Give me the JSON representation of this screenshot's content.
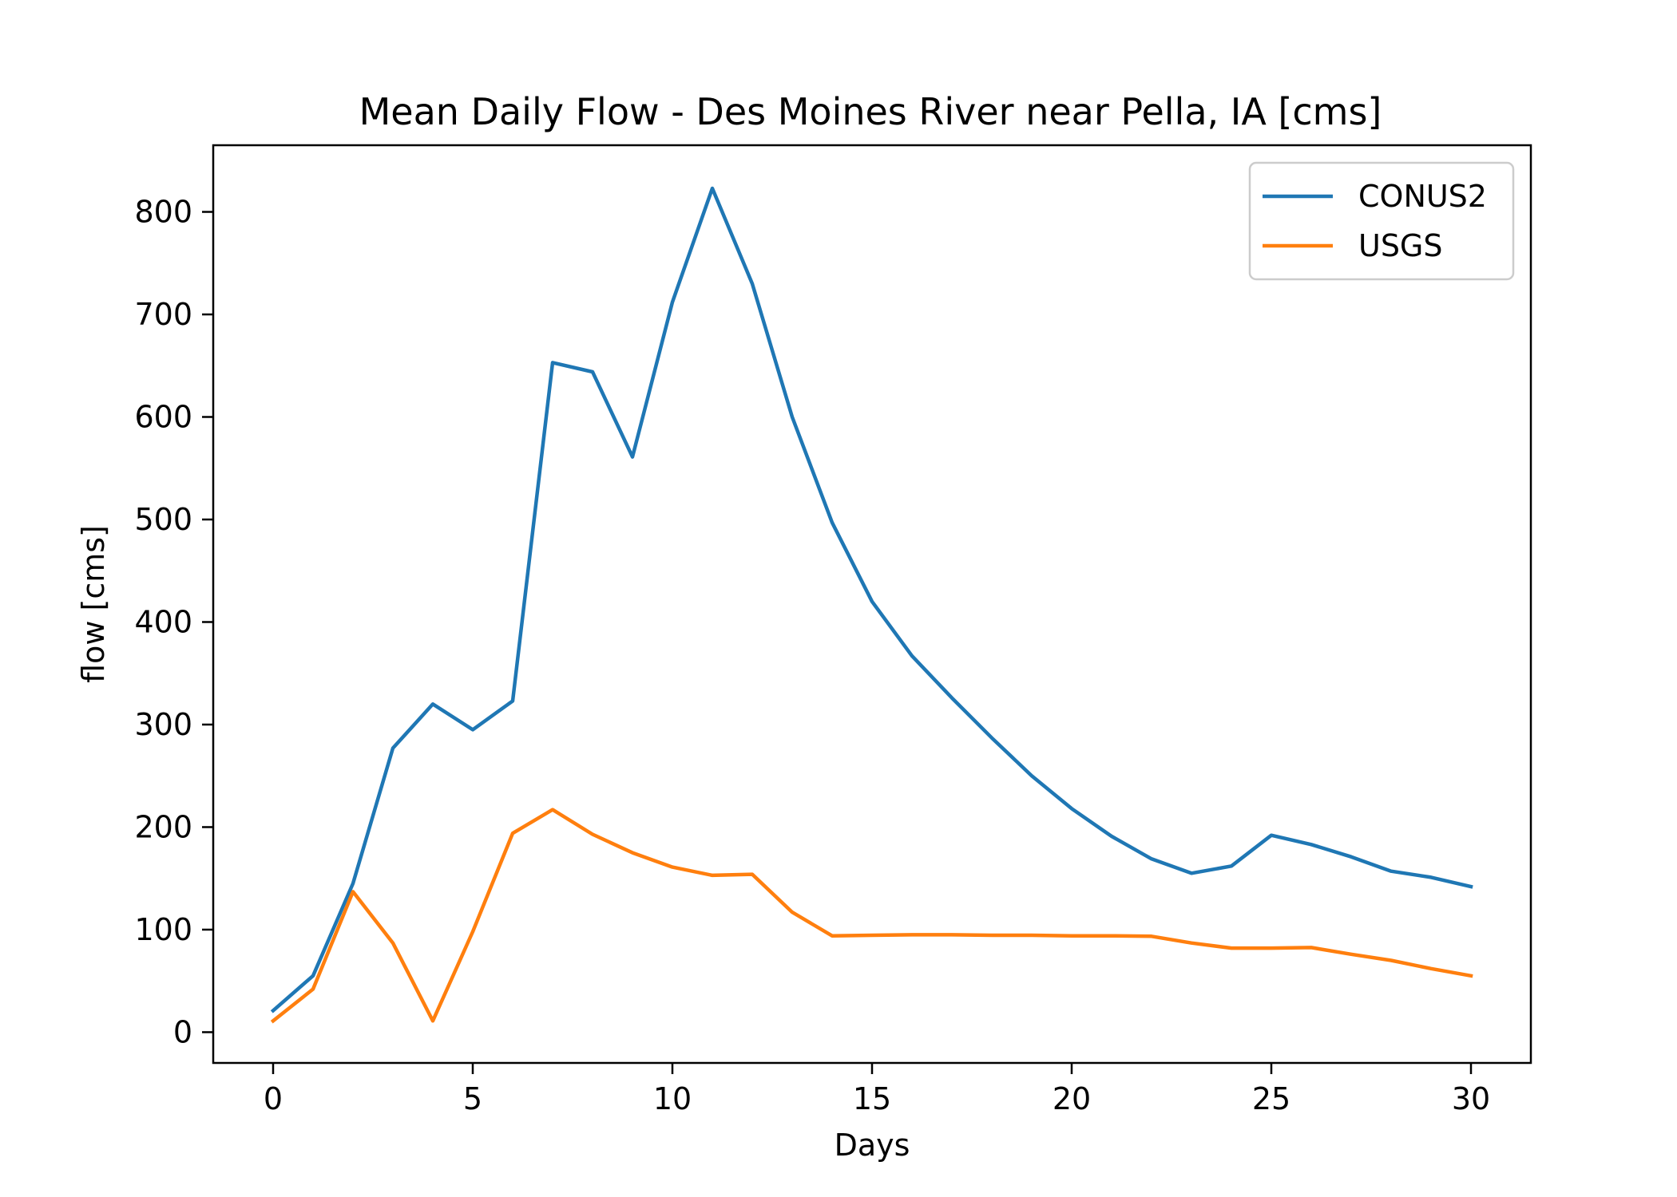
{
  "chart_data": {
    "type": "line",
    "title": "Mean Daily Flow - Des Moines River near Pella, IA [cms]",
    "xlabel": "Days",
    "ylabel": "flow [cms]",
    "xlim": [
      -1.5,
      31.5
    ],
    "ylim": [
      -30,
      865
    ],
    "xticks": [
      0,
      5,
      10,
      15,
      20,
      25,
      30
    ],
    "yticks": [
      0,
      100,
      200,
      300,
      400,
      500,
      600,
      700,
      800
    ],
    "grid": false,
    "legend_position": "top-right",
    "x": [
      0,
      1,
      2,
      3,
      4,
      5,
      6,
      7,
      8,
      9,
      10,
      11,
      12,
      13,
      14,
      15,
      16,
      17,
      18,
      19,
      20,
      21,
      22,
      23,
      24,
      25,
      26,
      27,
      28,
      29,
      30
    ],
    "series": [
      {
        "name": "CONUS2",
        "color": "#1f77b4",
        "values": [
          21,
          55,
          145,
          277,
          320,
          295,
          323,
          653,
          644,
          561,
          712,
          823,
          730,
          600,
          497,
          420,
          367,
          326,
          287,
          250,
          218,
          191,
          169,
          155,
          162,
          192,
          183,
          171,
          157,
          151,
          142
        ]
      },
      {
        "name": "USGS",
        "color": "#ff7f0e",
        "values": [
          11,
          42,
          137,
          87,
          11,
          98,
          194,
          217,
          193,
          175,
          161,
          153,
          154,
          117,
          94,
          94.5,
          95,
          95,
          94.5,
          94.5,
          94,
          94,
          93.5,
          87,
          82,
          82,
          82.5,
          76,
          70,
          62,
          55
        ]
      }
    ]
  }
}
